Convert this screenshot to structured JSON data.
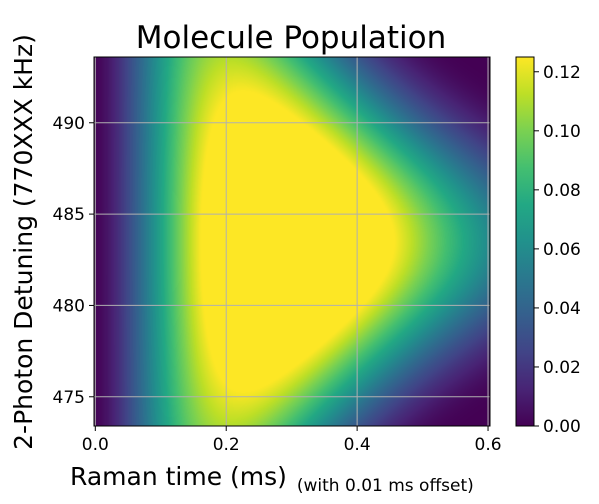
{
  "chart_data": {
    "type": "heatmap",
    "title": "Molecule Population",
    "xlabel": "Raman time (ms)",
    "xlabel_suffix": "(with 0.01 ms offset)",
    "ylabel": "2-Photon Detuning (770XXX kHz)",
    "xlim": [
      -0.002,
      0.603
    ],
    "ylim": [
      473.4,
      493.6
    ],
    "x_ticks": [
      0.0,
      0.2,
      0.4,
      0.6
    ],
    "x_tick_labels": [
      "0.0",
      "0.2",
      "0.4",
      "0.6"
    ],
    "y_ticks": [
      475,
      480,
      485,
      490
    ],
    "y_tick_labels": [
      "475",
      "480",
      "485",
      "490"
    ],
    "colorbar": {
      "colormap": "viridis",
      "range": [
        0.0,
        0.125
      ],
      "ticks": [
        0.0,
        0.02,
        0.04,
        0.06,
        0.08,
        0.1,
        0.12
      ],
      "tick_labels": [
        "0.00",
        "0.02",
        "0.04",
        "0.06",
        "0.08",
        "0.10",
        "0.12"
      ]
    },
    "grid": true,
    "peak": {
      "x": 0.19,
      "y": 483.5,
      "value": 0.125
    },
    "resonance_center": 483.5
  }
}
